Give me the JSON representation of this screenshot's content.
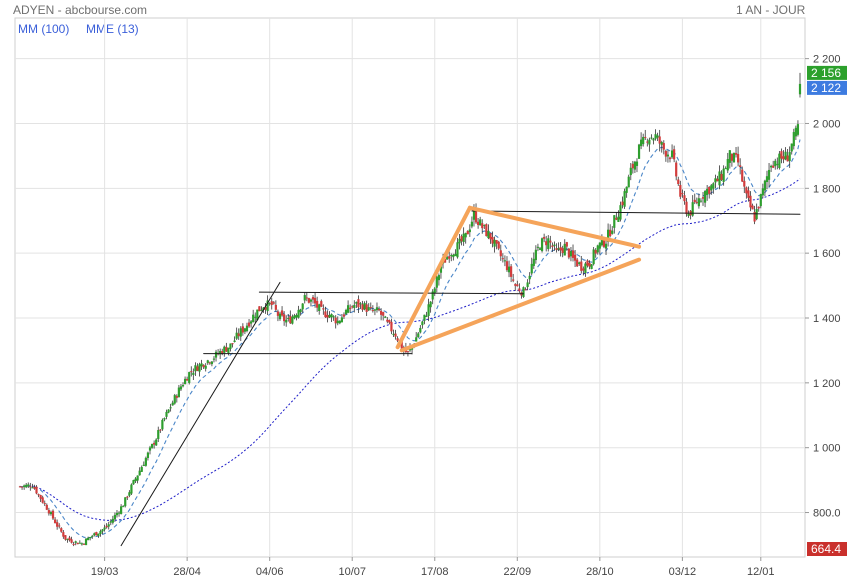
{
  "header": {
    "title": "ADYEN - abcbourse.com",
    "period": "1 AN - JOUR"
  },
  "legend": {
    "ma_label": "MM (100)",
    "ema_label": "MME (13)"
  },
  "colors": {
    "up": "#2e9e2e",
    "down": "#d23c3c",
    "ma_line": "#1f1fc8",
    "ema_line": "#4a86c8",
    "trend_line": "#1a1a1a",
    "pattern": "#f5a45a",
    "badge_high": "#2ca02c",
    "badge_last": "#3d7be0",
    "badge_low": "#c9302c",
    "grid": "#e3e3e3",
    "legend_text": "#3a5fd9"
  },
  "chart_data": {
    "type": "candlestick",
    "xlabel": "",
    "ylabel": "",
    "ylim": [
      650,
      2250
    ],
    "yticks": [
      800,
      1000,
      1200,
      1400,
      1600,
      1800,
      2000,
      2200
    ],
    "ytick_labels": [
      "800.0",
      "1 000",
      "1 200",
      "1 400",
      "1 600",
      "1 800",
      "2 000",
      "2 200"
    ],
    "xtick_labels": [
      "19/03",
      "28/04",
      "04/06",
      "10/07",
      "17/08",
      "22/09",
      "28/10",
      "03/12",
      "12/01"
    ],
    "grid": true,
    "legend_position": "top-left",
    "price_badges": [
      {
        "value": 2156,
        "label": "2 156",
        "kind": "high"
      },
      {
        "value": 2122,
        "label": "2 122",
        "kind": "last"
      },
      {
        "value": 664.4,
        "label": "664.4",
        "kind": "low"
      }
    ],
    "close_anchors": [
      [
        0,
        880
      ],
      [
        6,
        885
      ],
      [
        10,
        845
      ],
      [
        14,
        805
      ],
      [
        18,
        760
      ],
      [
        22,
        720
      ],
      [
        26,
        710
      ],
      [
        30,
        705
      ],
      [
        34,
        725
      ],
      [
        38,
        740
      ],
      [
        42,
        755
      ],
      [
        46,
        790
      ],
      [
        50,
        825
      ],
      [
        54,
        880
      ],
      [
        58,
        930
      ],
      [
        62,
        980
      ],
      [
        66,
        1030
      ],
      [
        70,
        1090
      ],
      [
        74,
        1140
      ],
      [
        78,
        1190
      ],
      [
        82,
        1230
      ],
      [
        86,
        1250
      ],
      [
        90,
        1265
      ],
      [
        94,
        1280
      ],
      [
        98,
        1300
      ],
      [
        102,
        1315
      ],
      [
        106,
        1350
      ],
      [
        110,
        1380
      ],
      [
        114,
        1415
      ],
      [
        118,
        1440
      ],
      [
        122,
        1440
      ],
      [
        126,
        1400
      ],
      [
        130,
        1390
      ],
      [
        134,
        1420
      ],
      [
        138,
        1460
      ],
      [
        142,
        1450
      ],
      [
        146,
        1420
      ],
      [
        150,
        1410
      ],
      [
        154,
        1390
      ],
      [
        158,
        1420
      ],
      [
        162,
        1440
      ],
      [
        166,
        1440
      ],
      [
        170,
        1420
      ],
      [
        174,
        1420
      ],
      [
        178,
        1380
      ],
      [
        182,
        1350
      ],
      [
        186,
        1300
      ],
      [
        188,
        1290
      ],
      [
        192,
        1340
      ],
      [
        196,
        1400
      ],
      [
        200,
        1470
      ],
      [
        204,
        1560
      ],
      [
        208,
        1600
      ],
      [
        212,
        1620
      ],
      [
        216,
        1650
      ],
      [
        220,
        1720
      ],
      [
        224,
        1680
      ],
      [
        228,
        1650
      ],
      [
        232,
        1600
      ],
      [
        236,
        1560
      ],
      [
        240,
        1500
      ],
      [
        244,
        1480
      ],
      [
        248,
        1560
      ],
      [
        252,
        1630
      ],
      [
        256,
        1640
      ],
      [
        260,
        1600
      ],
      [
        264,
        1620
      ],
      [
        268,
        1580
      ],
      [
        272,
        1560
      ],
      [
        276,
        1570
      ],
      [
        280,
        1620
      ],
      [
        284,
        1640
      ],
      [
        288,
        1700
      ],
      [
        292,
        1760
      ],
      [
        296,
        1850
      ],
      [
        300,
        1920
      ],
      [
        304,
        1960
      ],
      [
        308,
        1960
      ],
      [
        312,
        1920
      ],
      [
        316,
        1900
      ],
      [
        320,
        1780
      ],
      [
        324,
        1720
      ],
      [
        328,
        1760
      ],
      [
        332,
        1790
      ],
      [
        336,
        1810
      ],
      [
        340,
        1840
      ],
      [
        344,
        1900
      ],
      [
        348,
        1880
      ],
      [
        352,
        1770
      ],
      [
        356,
        1710
      ],
      [
        360,
        1790
      ],
      [
        364,
        1880
      ],
      [
        368,
        1890
      ],
      [
        372,
        1900
      ],
      [
        376,
        1970
      ],
      [
        378,
        2122
      ]
    ],
    "annotations": {
      "support_lines": [
        {
          "from": [
            116,
            1480
          ],
          "to": [
            244,
            1475
          ]
        },
        {
          "from": [
            89,
            1290
          ],
          "to": [
            190,
            1290
          ]
        },
        {
          "from": [
            219,
            1730
          ],
          "to": [
            378,
            1720
          ]
        }
      ],
      "trend_lines": [
        {
          "from": [
            49,
            698
          ],
          "to": [
            126,
            1510
          ]
        }
      ],
      "pattern_lines": [
        {
          "from": [
            183,
            1310
          ],
          "to": [
            218,
            1740
          ]
        },
        {
          "from": [
            185,
            1300
          ],
          "to": [
            300,
            1580
          ]
        },
        {
          "from": [
            218,
            1740
          ],
          "to": [
            300,
            1620
          ]
        }
      ]
    }
  }
}
